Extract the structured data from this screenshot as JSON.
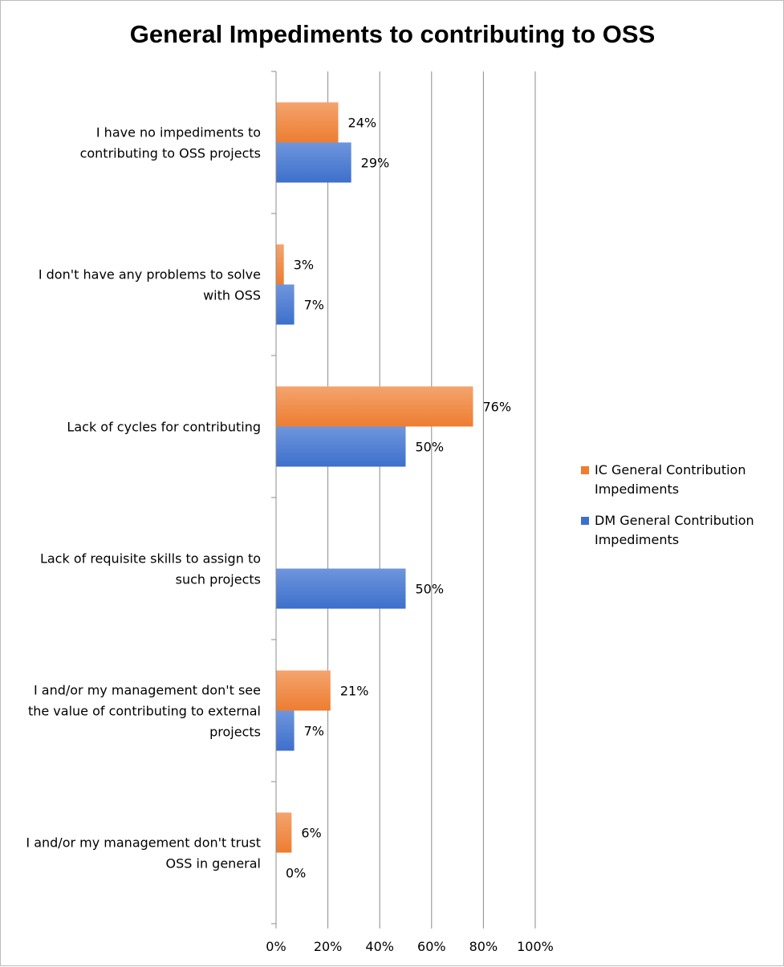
{
  "chart_data": {
    "type": "bar",
    "orientation": "horizontal",
    "title": "General Impediments to contributing to OSS",
    "xlabel": "",
    "ylabel": "",
    "xlim": [
      0,
      100
    ],
    "grid": true,
    "legend_position": "right",
    "x_ticks": [
      "0%",
      "20%",
      "40%",
      "60%",
      "80%",
      "100%"
    ],
    "categories": [
      [
        "I have no impediments to",
        "contributing to OSS projects"
      ],
      [
        "I don't have any problems to solve",
        "with OSS"
      ],
      [
        "Lack of cycles for contributing"
      ],
      [
        "Lack of requisite skills to assign to",
        "such projects"
      ],
      [
        "I and/or my management don't see",
        "the value of contributing to external",
        "projects"
      ],
      [
        "I and/or my management don't trust",
        "OSS in general"
      ]
    ],
    "series": [
      {
        "name": "IC General Contribution Impediments",
        "legend_lines": [
          "IC General Contribution",
          "Impediments"
        ],
        "color": "#ED7D31",
        "color_light": "#F4A46E",
        "values": [
          24,
          3,
          76,
          null,
          21,
          6
        ],
        "labels": [
          "24%",
          "3%",
          "76%",
          "",
          "21%",
          "6%"
        ]
      },
      {
        "name": "DM General Contribution Impediments",
        "legend_lines": [
          "DM General Contribution",
          "Impediments"
        ],
        "color": "#3D6FCB",
        "color_light": "#6F96DD",
        "values": [
          29,
          7,
          50,
          50,
          7,
          0
        ],
        "labels": [
          "29%",
          "7%",
          "50%",
          "50%",
          "7%",
          "0%"
        ]
      }
    ]
  }
}
